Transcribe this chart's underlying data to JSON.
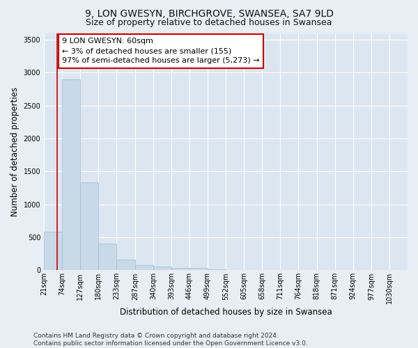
{
  "title": "9, LON GWESYN, BIRCHGROVE, SWANSEA, SA7 9LD",
  "subtitle": "Size of property relative to detached houses in Swansea",
  "xlabel": "Distribution of detached houses by size in Swansea",
  "ylabel": "Number of detached properties",
  "bar_edges": [
    21,
    74,
    127,
    180,
    233,
    287,
    340,
    393,
    446,
    499,
    552,
    605,
    658,
    711,
    764,
    818,
    871,
    924,
    977,
    1030,
    1083
  ],
  "bar_heights": [
    580,
    2900,
    1330,
    410,
    165,
    80,
    55,
    40,
    35,
    15,
    8,
    4,
    3,
    2,
    1,
    1,
    0,
    0,
    0,
    0
  ],
  "bar_color": "#c8d9e8",
  "bar_edgecolor": "#9fbdd4",
  "property_size": 60,
  "annotation_line1": "9 LON GWESYN: 60sqm",
  "annotation_line2": "← 3% of detached houses are smaller (155)",
  "annotation_line3": "97% of semi-detached houses are larger (5,273) →",
  "annotation_box_edgecolor": "#cc0000",
  "annotation_box_facecolor": "#ffffff",
  "vline_color": "#cc0000",
  "ylim": [
    0,
    3600
  ],
  "yticks": [
    0,
    500,
    1000,
    1500,
    2000,
    2500,
    3000,
    3500
  ],
  "footer_line1": "Contains HM Land Registry data © Crown copyright and database right 2024.",
  "footer_line2": "Contains public sector information licensed under the Open Government Licence v3.0.",
  "bg_color": "#e8eef4",
  "plot_bg_color": "#dce6f0",
  "grid_color": "#ffffff",
  "title_fontsize": 10,
  "subtitle_fontsize": 9,
  "axis_label_fontsize": 8.5,
  "tick_fontsize": 7,
  "annotation_fontsize": 8,
  "footer_fontsize": 6.5
}
